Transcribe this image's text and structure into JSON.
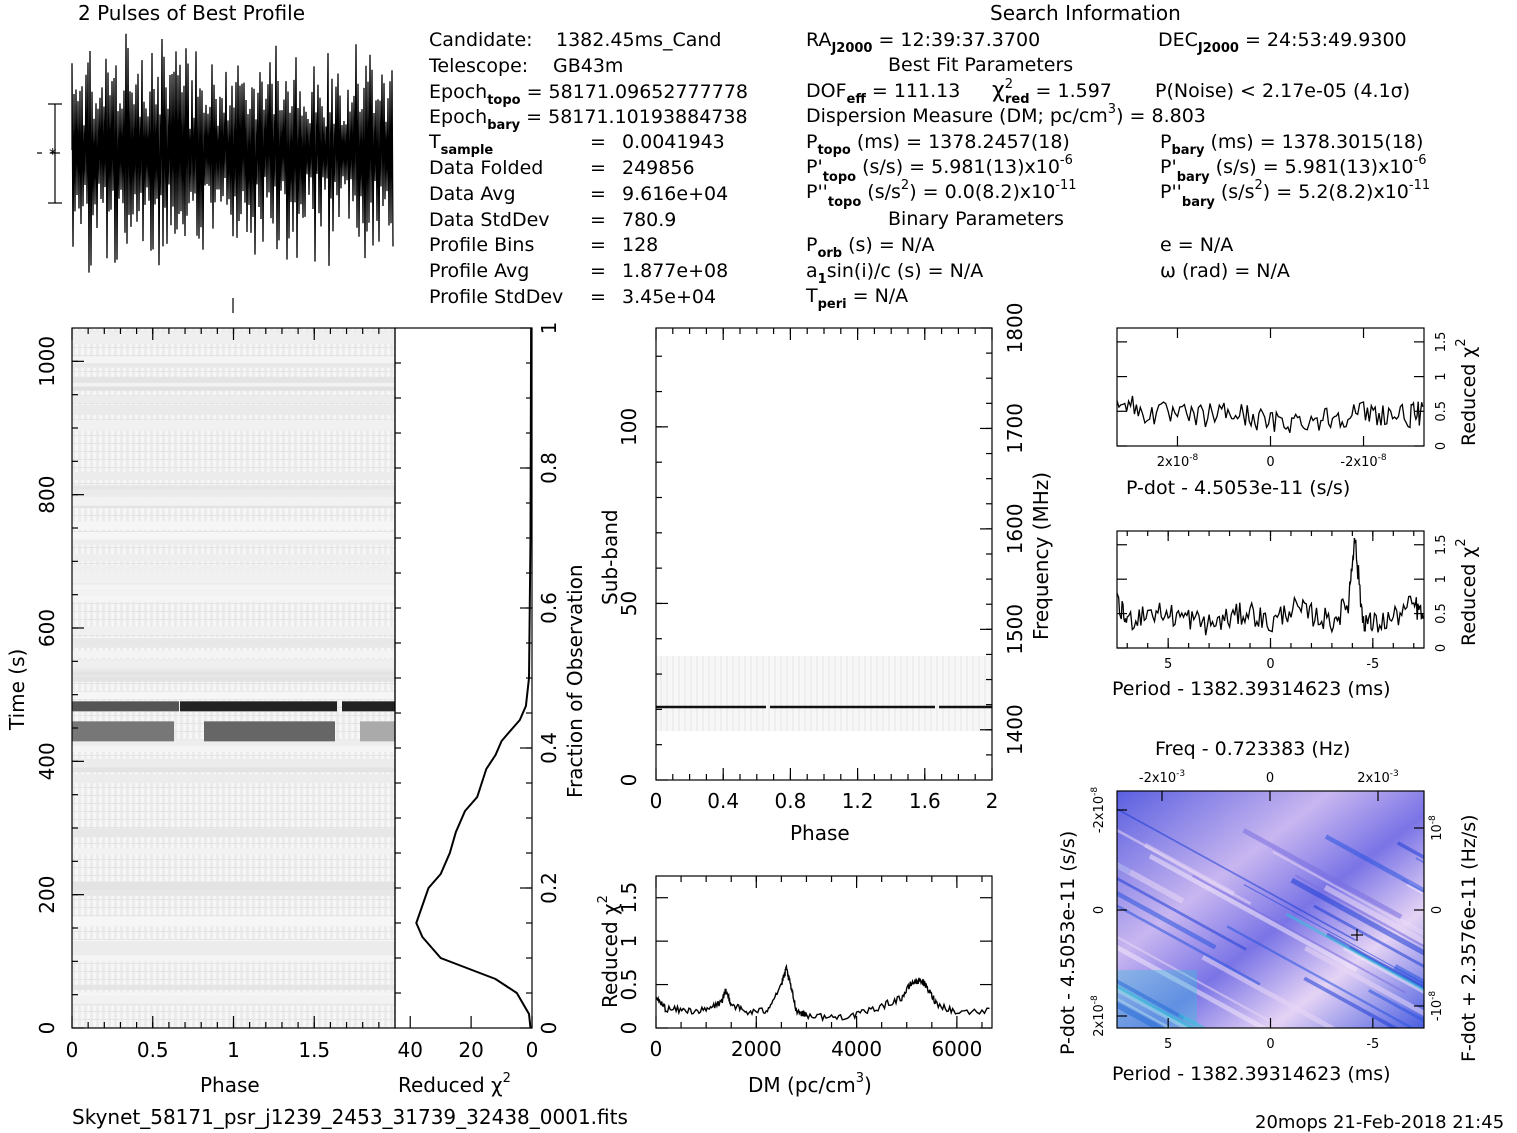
{
  "header": {
    "profile_title": "2 Pulses of Best Profile",
    "search_title": "Search Information"
  },
  "candidate_info": [
    {
      "label": "Candidate:",
      "value": "1382.45ms_Cand"
    },
    {
      "label": "Telescope:",
      "value": "GB43m"
    },
    {
      "label": "Epoch",
      "sub": "topo",
      "value": "= 58171.09652777778"
    },
    {
      "label": "Epoch",
      "sub": "bary",
      "value": "= 58171.10193884738"
    },
    {
      "label": "T",
      "sub": "sample",
      "value": "=",
      "value2": "0.0041943"
    },
    {
      "label": "Data Folded",
      "value": "=",
      "value2": "249856"
    },
    {
      "label": "Data Avg",
      "value": "=",
      "value2": "9.616e+04"
    },
    {
      "label": "Data StdDev",
      "value": "=",
      "value2": "780.9"
    },
    {
      "label": "Profile Bins",
      "value": "=",
      "value2": "128"
    },
    {
      "label": "Profile Avg",
      "value": "=",
      "value2": "1.877e+08"
    },
    {
      "label": "Profile StdDev",
      "value": "=",
      "value2": "3.45e+04"
    }
  ],
  "search_info": {
    "ra": "RA",
    "ra_sub": "J2000",
    "ra_value": "= 12:39:37.3700",
    "dec": "DEC",
    "dec_sub": "J2000",
    "dec_value": "= 24:53:49.9300",
    "best_fit_title": "Best Fit Parameters",
    "dof": "DOF",
    "dof_sub": "eff",
    "dof_value": "= 111.13",
    "chi2": "χ",
    "chi2_sub": "red",
    "chi2_value": "= 1.597",
    "pnoise": "P(Noise) < 2.17e-05  (4.1σ)",
    "dm_line": "Dispersion Measure (DM; pc/cm",
    "dm_value": ") = 8.803",
    "p_topo": "P",
    "p_topo_sub": "topo",
    "p_topo_value": "(ms) =  1378.2457(18)",
    "p_bary": "P",
    "p_bary_sub": "bary",
    "p_bary_value": "(ms) =  1378.3015(18)",
    "pd_topo": "P'",
    "pd_topo_sub": "topo",
    "pd_topo_value": "(s/s) =  5.981(13)x10",
    "pd_topo_exp": "-6",
    "pd_bary": "P'",
    "pd_bary_sub": "bary",
    "pd_bary_value": "(s/s) =  5.981(13)x10",
    "pd_bary_exp": "-6",
    "pdd_topo": "P''",
    "pdd_topo_sub": "topo",
    "pdd_topo_value": "(s/s",
    "pdd_topo_value2": ") = 0.0(8.2)x10",
    "pdd_topo_exp": "-11",
    "pdd_bary": "P''",
    "pdd_bary_sub": "bary",
    "pdd_bary_value": "(s/s",
    "pdd_bary_value2": ") =  5.2(8.2)x10",
    "pdd_bary_exp": "-11",
    "binary_title": "Binary Parameters",
    "porb": "P",
    "porb_sub": "orb",
    "porb_value": "(s) = N/A",
    "e_value": "e = N/A",
    "a1": "a",
    "a1_sub": "1",
    "a1_value": "sin(i)/c (s) = N/A",
    "omega_value": "ω (rad) = N/A",
    "tperi": "T",
    "tperi_sub": "peri",
    "tperi_value": "= N/A"
  },
  "footer": {
    "filename": "Skynet_58171_psr_j1239_2453_31739_32438_0001.fits",
    "stamp": "20mops 21-Feb-2018 21:45"
  },
  "chart_data": [
    {
      "id": "time-phase",
      "type": "heatmap",
      "xlabel": "Phase",
      "ylabel": "Time (s)",
      "xlim": [
        0,
        2
      ],
      "ylim": [
        0,
        1050
      ],
      "xticks": [
        "0",
        "0.5",
        "1",
        "1.5"
      ],
      "yticks": [
        "0",
        "200",
        "400",
        "600",
        "800",
        "1000"
      ],
      "bright_bands_time_s": [
        [
          475,
          490
        ],
        [
          430,
          460
        ]
      ]
    },
    {
      "id": "time-chi2",
      "type": "line",
      "xlabel": "Reduced χ",
      "xlabel_sup": "2",
      "ylabel": "Fraction of Observation",
      "xlim": [
        45,
        0
      ],
      "ylim": [
        0,
        1
      ],
      "xticks": [
        "40",
        "20",
        "0"
      ],
      "yticks": [
        "0",
        "0.2",
        "0.4",
        "0.6",
        "0.8",
        "1"
      ],
      "x": [
        0.5,
        1,
        5,
        12,
        18,
        24,
        30,
        36,
        38,
        34,
        30,
        27,
        25,
        22,
        18,
        15,
        12,
        10,
        8,
        6,
        4,
        2,
        1,
        0.5,
        0.3
      ],
      "y": [
        0,
        0.02,
        0.05,
        0.07,
        0.08,
        0.09,
        0.1,
        0.13,
        0.15,
        0.2,
        0.22,
        0.25,
        0.28,
        0.31,
        0.33,
        0.37,
        0.39,
        0.41,
        0.42,
        0.43,
        0.44,
        0.46,
        0.5,
        0.7,
        1.0
      ]
    },
    {
      "id": "subband-phase",
      "type": "heatmap",
      "xlabel": "Phase",
      "ylabel": "Sub-band",
      "y2label": "Frequency (MHz)",
      "xlim": [
        0,
        2
      ],
      "ylim": [
        0,
        128
      ],
      "y2lim": [
        1350,
        1800
      ],
      "xticks": [
        "0",
        "0.4",
        "0.8",
        "1.2",
        "1.6",
        "2"
      ],
      "yticks": [
        "0",
        "50",
        "100"
      ],
      "y2ticks": [
        "1400",
        "1500",
        "1600",
        "1700",
        "1800"
      ],
      "signal_subband": 21
    },
    {
      "id": "dm-chi2",
      "type": "line",
      "xlabel": "DM (pc/cm",
      "xlabel_sup": "3",
      "xlabel_end": ")",
      "ylabel": "Reduced χ",
      "ylabel_sup": "2",
      "xlim": [
        0,
        6700
      ],
      "ylim": [
        0,
        1.75
      ],
      "xticks": [
        "0",
        "2000",
        "4000",
        "6000"
      ],
      "yticks": [
        "0",
        "0.5",
        "1",
        "1.5"
      ],
      "x": [
        0,
        200,
        600,
        1000,
        1300,
        1400,
        1500,
        1800,
        2200,
        2500,
        2600,
        2700,
        2800,
        3000,
        3500,
        4000,
        4500,
        4900,
        5100,
        5300,
        5450,
        5600,
        6000,
        6700
      ],
      "y": [
        0.35,
        0.22,
        0.2,
        0.2,
        0.3,
        0.42,
        0.28,
        0.18,
        0.2,
        0.5,
        0.68,
        0.45,
        0.2,
        0.15,
        0.12,
        0.15,
        0.25,
        0.35,
        0.52,
        0.55,
        0.42,
        0.28,
        0.18,
        0.2
      ]
    },
    {
      "id": "pdot-chi2",
      "type": "line",
      "xlabel": "P-dot - 4.5053e-11 (s/s)",
      "ylabel": "Reduced χ",
      "ylabel_sup": "2",
      "xlim": [
        3.3e-08,
        -3.3e-08
      ],
      "ylim": [
        0,
        1.7
      ],
      "xticks": [
        "2x10",
        "0",
        "-2x10"
      ],
      "xtick_exp": "-8",
      "yticks": [
        "0",
        "0.5",
        "1",
        "1.5"
      ],
      "x": [
        3.3e-08,
        2.8e-08,
        2.2e-08,
        1.6e-08,
        1e-08,
        5e-09,
        0.0,
        -5e-09,
        -1e-08,
        -1.5e-08,
        -2e-08,
        -2.5e-08,
        -3e-08,
        -3.3e-08
      ],
      "y": [
        0.7,
        0.45,
        0.42,
        0.38,
        0.45,
        0.4,
        0.3,
        0.32,
        0.35,
        0.4,
        0.45,
        0.42,
        0.4,
        0.45
      ]
    },
    {
      "id": "period-chi2",
      "type": "line",
      "xlabel": "Period - 1382.39314623 (ms)",
      "ylabel": "Reduced χ",
      "ylabel_sup": "2",
      "xlim": [
        7.5,
        -7.5
      ],
      "ylim": [
        0,
        1.7
      ],
      "xticks": [
        "5",
        "0",
        "-5"
      ],
      "yticks": [
        "0",
        "0.5",
        "1",
        "1.5"
      ],
      "x": [
        7.5,
        7,
        6,
        5,
        4,
        3,
        2,
        1,
        0,
        -1,
        -2,
        -3,
        -3.8,
        -4.1,
        -4.5,
        -5,
        -6,
        -7,
        -7.5
      ],
      "y": [
        0.6,
        0.35,
        0.5,
        0.45,
        0.4,
        0.3,
        0.4,
        0.5,
        0.3,
        0.55,
        0.45,
        0.35,
        0.6,
        1.6,
        0.4,
        0.3,
        0.4,
        0.6,
        0.4
      ]
    },
    {
      "id": "period-pdot",
      "type": "heatmap",
      "title": "Freq - 0.723383 (Hz)",
      "xlabel": "Period - 1382.39314623 (ms)",
      "ylabel": "P-dot - 4.5053e-11 (s/s)",
      "y2label": "F-dot + 2.3576e-11 (Hz/s)",
      "xticks": [
        "5",
        "0",
        "-5"
      ],
      "x2ticks": [
        "-2x10",
        "0",
        "2x10"
      ],
      "x2tick_exp": "-3",
      "yticks": [
        "2x10",
        "0",
        "-2x10"
      ],
      "ytick_exp": "-8",
      "y2ticks": [
        "-10",
        "0",
        "10"
      ],
      "y2tick_exp": "-8",
      "best_period_ms": -3.8,
      "best_pdot": -1e-08
    }
  ],
  "colors": {
    "ink": "#000000",
    "grey_background": "#f0f0f0",
    "heatmap_low": "#1f3fd6",
    "heatmap_mid": "#7a6fe0",
    "heatmap_high": "#e8d7f6",
    "heatmap_cyan": "#33c3d9"
  }
}
